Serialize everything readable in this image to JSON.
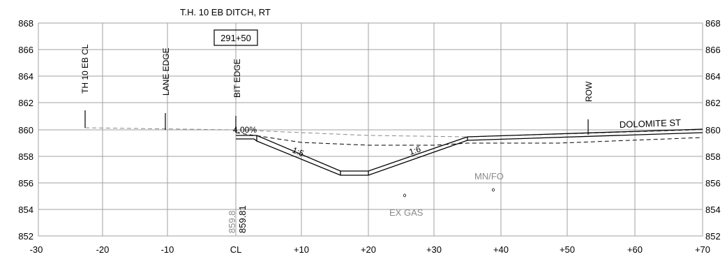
{
  "title": "T.H. 10 EB DITCH, RT",
  "station": "291+50",
  "axes": {
    "y_ticks": [
      "852",
      "854",
      "856",
      "858",
      "860",
      "862",
      "864",
      "866",
      "868"
    ],
    "x_ticks": [
      "-30",
      "-20",
      "-10",
      "CL",
      "+10",
      "+20",
      "+30",
      "+40",
      "+50",
      "+60",
      "+70"
    ]
  },
  "labels": {
    "th10_cl": "TH 10 EB CL",
    "lane_edge": "LANE EDGE",
    "bit_edge": "BIT EDGE",
    "row": "ROW",
    "dolomite": "DOLOMITE ST",
    "slope_pct": "4.00%",
    "slope_left": "1:5",
    "slope_right": "1:6",
    "mn_fo": "MN/FO",
    "ex_gas": "EX GAS",
    "elev_existing": "859.8",
    "elev_proposed": "859.81"
  },
  "colors": {
    "grid": "#a0a0a0",
    "line": "#000000",
    "existing": "#8a8a8a"
  },
  "chart_data": {
    "type": "cross-section",
    "title": "T.H. 10 EB DITCH, RT",
    "xlim": [
      -30,
      70
    ],
    "ylim": [
      852,
      868
    ],
    "proposed_profile": [
      [
        0,
        859.5
      ],
      [
        15.5,
        856.8
      ],
      [
        19.5,
        856.8
      ],
      [
        34.5,
        859.3
      ],
      [
        70,
        859.9
      ]
    ],
    "existing_ground": [
      [
        -22.5,
        860.2
      ],
      [
        0,
        859.9
      ],
      [
        30,
        859.4
      ],
      [
        70,
        859.8
      ]
    ],
    "utilities": [
      {
        "name": "MN/FO",
        "x": 38.5,
        "y": 855.5
      },
      {
        "name": "EX GAS",
        "x": 25,
        "y": 855.1
      }
    ]
  }
}
